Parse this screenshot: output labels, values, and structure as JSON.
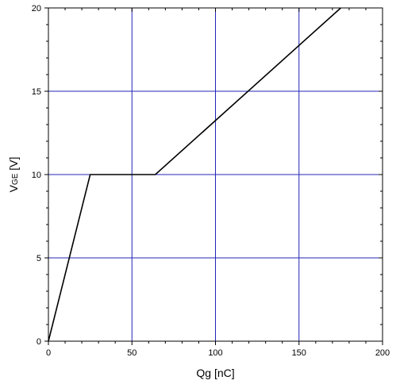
{
  "chart_data": {
    "type": "line",
    "xlabel": "Qg [nC]",
    "ylabel_main": "V",
    "ylabel_sub": "GE",
    "ylabel_unit": " [V]",
    "xlim": [
      0,
      200
    ],
    "ylim": [
      0,
      20
    ],
    "x_ticks": [
      0,
      50,
      100,
      150,
      200
    ],
    "y_ticks": [
      0,
      5,
      10,
      15,
      20
    ],
    "x_tick_labels": [
      "0",
      "50",
      "100",
      "150",
      "200"
    ],
    "y_tick_labels": [
      "0",
      "5",
      "10",
      "15",
      "20"
    ],
    "grid": true,
    "series": [
      {
        "x": [
          0,
          25,
          64,
          175
        ],
        "y": [
          0,
          10,
          10,
          20
        ]
      }
    ],
    "colors": {
      "grid": "#2424b8",
      "line": "#000000",
      "axis": "#000000"
    }
  }
}
